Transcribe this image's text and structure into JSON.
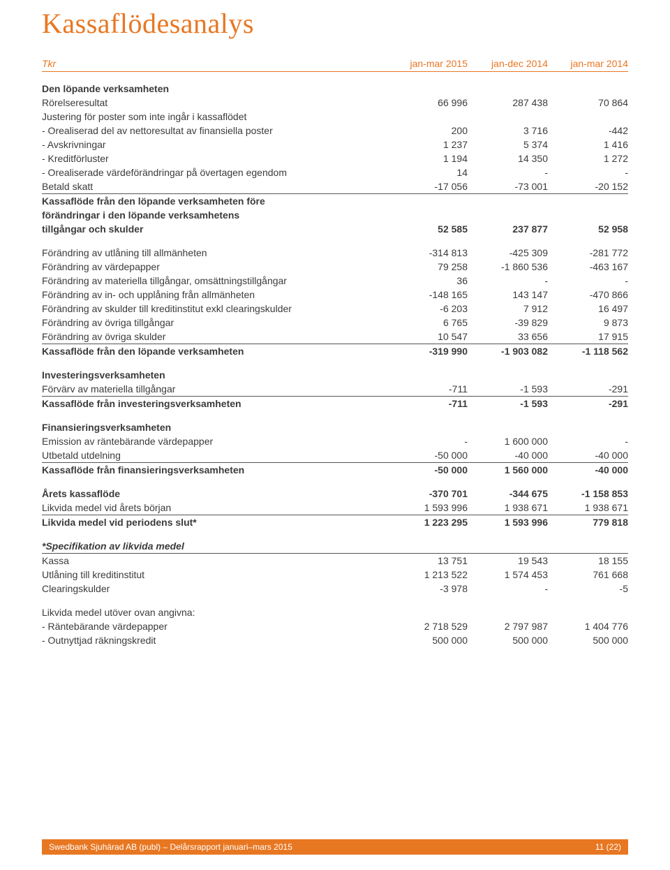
{
  "title": "Kassaflödesanalys",
  "unit_label": "Tkr",
  "columns": [
    "jan-mar 2015",
    "jan-dec 2014",
    "jan-mar 2014"
  ],
  "style": {
    "accent_color": "#e87722",
    "text_color": "#3b3b3b",
    "rule_color": "#555555",
    "title_fontsize_pt": 30,
    "body_fontsize_pt": 10.5,
    "page_bg": "#ffffff",
    "outer_bg": "#f0ebe5"
  },
  "footer": {
    "left": "Swedbank Sjuhärad AB (publ) – Delårsrapport januari–mars 2015",
    "right": "11 (22)"
  },
  "rows": [
    {
      "type": "section",
      "label": "Den löpande verksamheten"
    },
    {
      "label": "Rörelseresultat",
      "v": [
        "66 996",
        "287 438",
        "70 864"
      ]
    },
    {
      "label": "Justering för poster som inte ingår i kassaflödet"
    },
    {
      "label": " - Orealiserad del av nettoresultat av finansiella poster",
      "v": [
        "200",
        "3 716",
        "-442"
      ]
    },
    {
      "label": " - Avskrivningar",
      "v": [
        "1 237",
        "5 374",
        "1 416"
      ]
    },
    {
      "label": " - Kreditförluster",
      "v": [
        "1 194",
        "14 350",
        "1 272"
      ]
    },
    {
      "label": " - Orealiserade värdeförändringar på övertagen egendom",
      "v": [
        "14",
        "-",
        "-"
      ]
    },
    {
      "label": "Betald skatt",
      "v": [
        "-17 056",
        "-73 001",
        "-20 152"
      ],
      "uline": true
    },
    {
      "label": "Kassaflöde från den löpande verksamheten före",
      "bold": true
    },
    {
      "label": "förändringar i den löpande verksamhetens",
      "bold": true
    },
    {
      "label": "tillgångar och skulder",
      "v": [
        "52 585",
        "237 877",
        "52 958"
      ],
      "bold": true
    },
    {
      "label": "Förändring av utlåning till allmänheten",
      "v": [
        "-314 813",
        "-425 309",
        "-281 772"
      ],
      "pad_top": true
    },
    {
      "label": "Förändring av värdepapper",
      "v": [
        "79 258",
        "-1 860 536",
        "-463 167"
      ]
    },
    {
      "label": "Förändring av materiella tillgångar, omsättningstillgångar",
      "v": [
        "36",
        "-",
        "-"
      ]
    },
    {
      "label": "Förändring av in- och upplåning från allmänheten",
      "v": [
        "-148 165",
        "143 147",
        "-470 866"
      ]
    },
    {
      "label": "Förändring av skulder till kreditinstitut exkl clearingskulder",
      "v": [
        "-6 203",
        "7 912",
        "16 497"
      ]
    },
    {
      "label": "Förändring av övriga tillgångar",
      "v": [
        "6 765",
        "-39 829",
        "9 873"
      ]
    },
    {
      "label": "Förändring av övriga skulder",
      "v": [
        "10 547",
        "33 656",
        "17 915"
      ],
      "uline": true
    },
    {
      "label": "Kassaflöde från den löpande verksamheten",
      "v": [
        "-319 990",
        "-1 903 082",
        "-1 118 562"
      ],
      "bold": true
    },
    {
      "type": "section",
      "label": "Investeringsverksamheten"
    },
    {
      "label": "Förvärv av materiella tillgångar",
      "v": [
        "-711",
        "-1 593",
        "-291"
      ],
      "uline": true
    },
    {
      "label": "Kassaflöde från investeringsverksamheten",
      "v": [
        "-711",
        "-1 593",
        "-291"
      ],
      "bold": true
    },
    {
      "type": "section",
      "label": "Finansieringsverksamheten"
    },
    {
      "label": "Emission av räntebärande värdepapper",
      "v": [
        "-",
        "1 600 000",
        "-"
      ]
    },
    {
      "label": "Utbetald utdelning",
      "v": [
        "-50 000",
        "-40 000",
        "-40 000"
      ],
      "uline": true
    },
    {
      "label": "Kassaflöde från finansieringsverksamheten",
      "v": [
        "-50 000",
        "1 560 000",
        "-40 000"
      ],
      "bold": true
    },
    {
      "label": "Årets kassaflöde",
      "v": [
        "-370 701",
        "-344 675",
        "-1 158 853"
      ],
      "bold": true,
      "pad_top": true
    },
    {
      "label": "Likvida medel vid årets början",
      "v": [
        "1 593 996",
        "1 938 671",
        "1 938 671"
      ],
      "uline": true
    },
    {
      "label": "Likvida medel vid periodens slut*",
      "v": [
        "1 223 295",
        "1 593 996",
        "779 818"
      ],
      "bold": true
    },
    {
      "label": "*Specifikation av likvida medel",
      "italic": true,
      "bold": true,
      "uline": true,
      "pad_top": true
    },
    {
      "label": "Kassa",
      "v": [
        "13 751",
        "19 543",
        "18 155"
      ]
    },
    {
      "label": "Utlåning till kreditinstitut",
      "v": [
        "1 213 522",
        "1 574 453",
        "761 668"
      ]
    },
    {
      "label": "Clearingskulder",
      "v": [
        "-3 978",
        "-",
        "-5"
      ]
    },
    {
      "label": "Likvida medel utöver ovan angivna:",
      "pad_top": true
    },
    {
      "label": " - Räntebärande värdepapper",
      "v": [
        "2 718 529",
        "2 797 987",
        "1 404 776"
      ]
    },
    {
      "label": " - Outnyttjad räkningskredit",
      "v": [
        "500 000",
        "500 000",
        "500 000"
      ]
    }
  ]
}
